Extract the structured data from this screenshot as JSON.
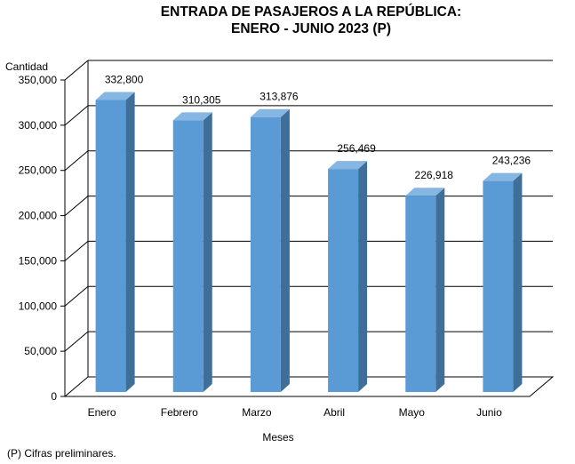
{
  "chart_data": {
    "type": "bar",
    "title": "ENTRADA DE PASAJEROS A LA REPÚBLICA:",
    "subtitle": "ENERO - JUNIO 2023 (P)",
    "ylabel": "Cantidad",
    "xlabel": "Meses",
    "ylim": [
      0,
      350000
    ],
    "y_ticks": [
      "0",
      "50,000",
      "100,000",
      "150,000",
      "200,000",
      "250,000",
      "300,000",
      "350,000"
    ],
    "y_tick_values": [
      0,
      50000,
      100000,
      150000,
      200000,
      250000,
      300000,
      350000
    ],
    "categories": [
      "Enero",
      "Febrero",
      "Marzo",
      "Abril",
      "Mayo",
      "Junio"
    ],
    "values": [
      332800,
      310305,
      313876,
      256469,
      226918,
      243236
    ],
    "data_labels": [
      "332,800",
      "310,305",
      "313,876",
      "256,469",
      "226,918",
      "243,236"
    ],
    "grid": true,
    "legend": "none",
    "footnote": "(P) Cifras  preliminares.",
    "colors": {
      "bar_front": "#5b9bd5",
      "bar_side": "#3f6e98",
      "bar_top": "#86b6e2",
      "grid": "#000000",
      "floor": "#ffffff"
    }
  }
}
